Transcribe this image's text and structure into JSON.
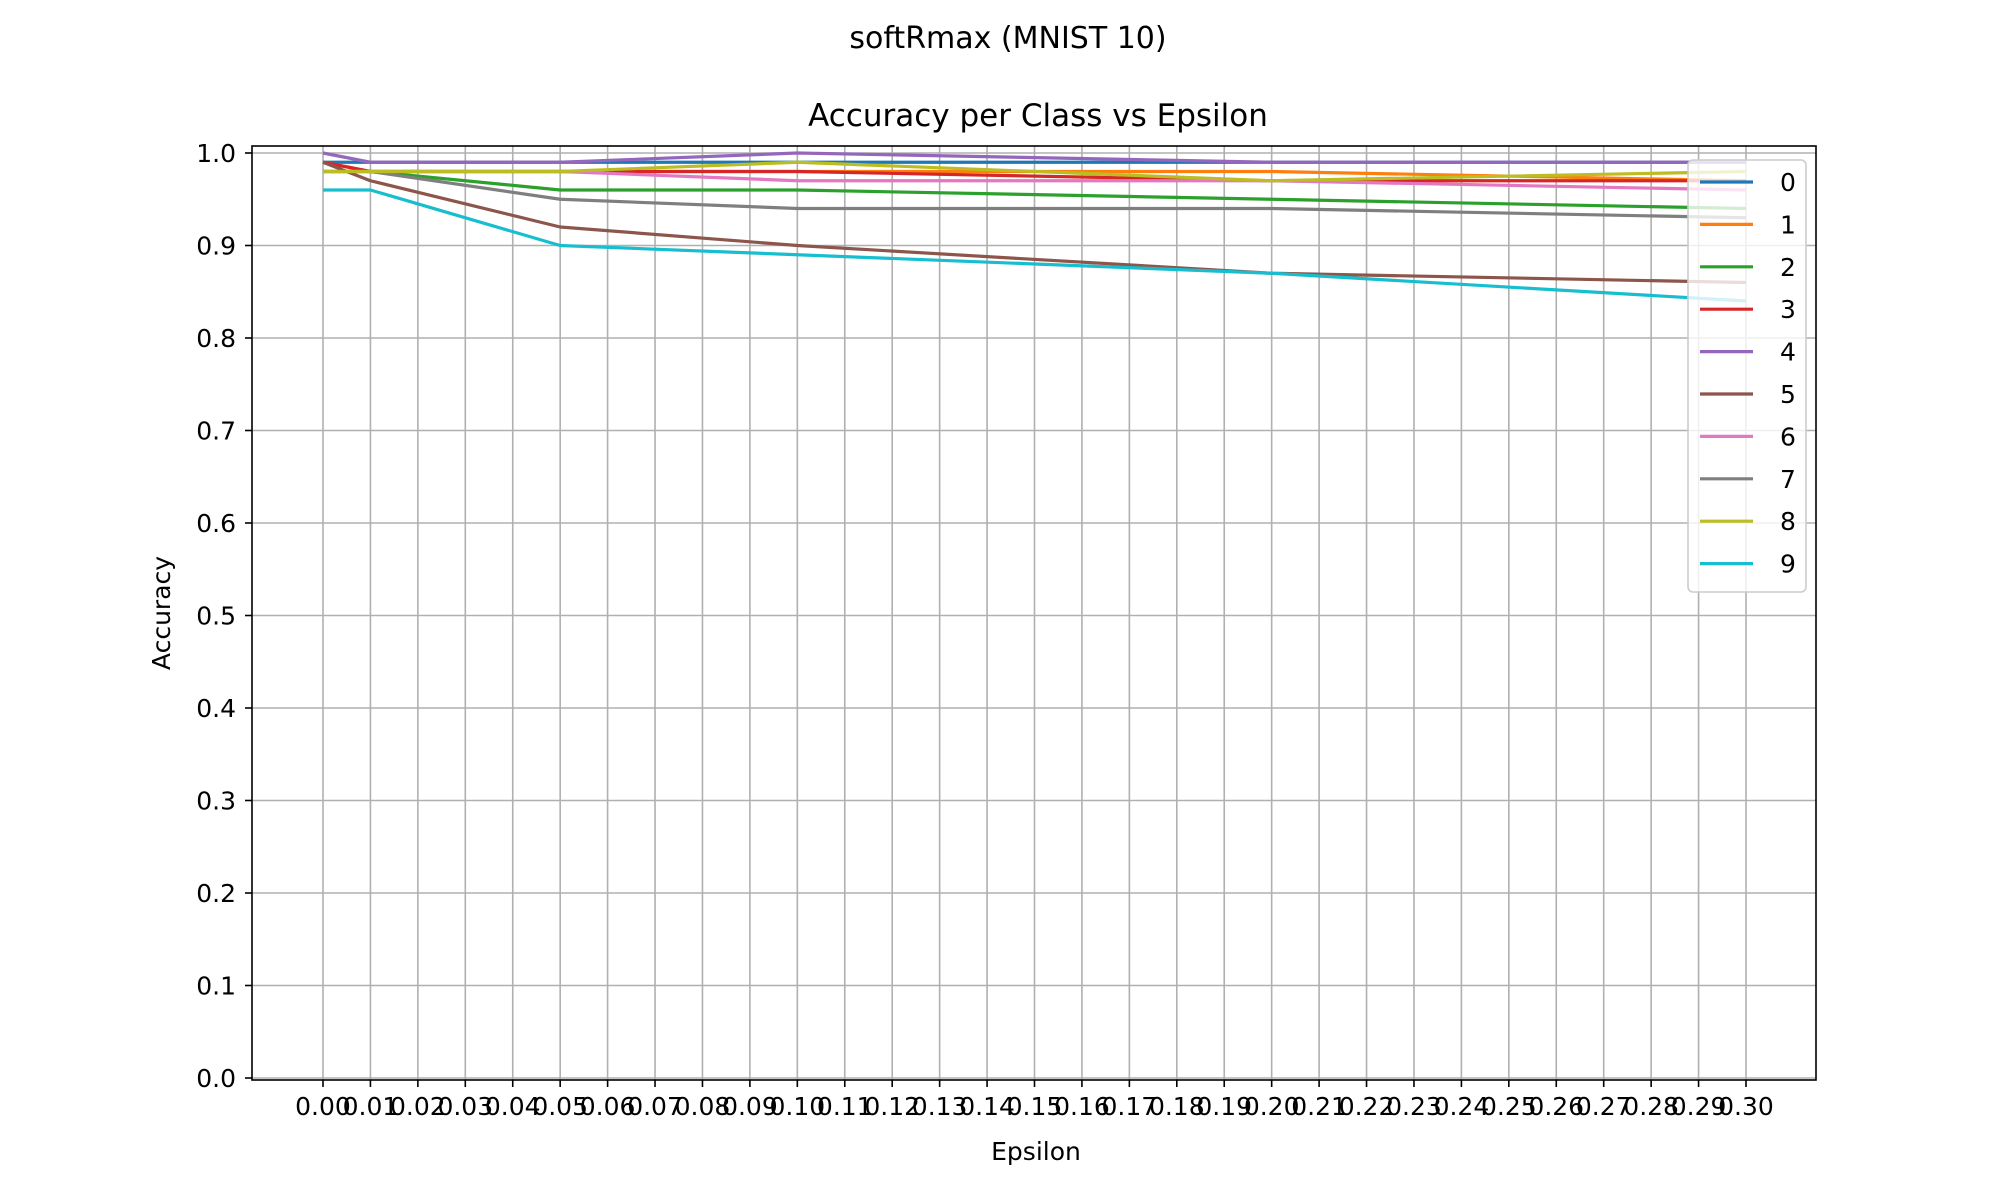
{
  "chart_data": {
    "type": "line",
    "suptitle": "softRmax (MNIST 10)",
    "title": "Accuracy per Class vs Epsilon",
    "xlabel": "Epsilon",
    "ylabel": "Accuracy",
    "ylim": [
      0.0,
      1.0
    ],
    "xlim": [
      0.0,
      0.3
    ],
    "grid": true,
    "legend_position": "upper right",
    "x_ticks": [
      "0.00",
      "0.01",
      "0.02",
      "0.03",
      "0.04",
      "0.05",
      "0.06",
      "0.07",
      "0.08",
      "0.09",
      "0.10",
      "0.11",
      "0.12",
      "0.13",
      "0.14",
      "0.15",
      "0.16",
      "0.17",
      "0.18",
      "0.19",
      "0.20",
      "0.21",
      "0.22",
      "0.23",
      "0.24",
      "0.25",
      "0.26",
      "0.27",
      "0.28",
      "0.29",
      "0.30"
    ],
    "y_ticks": [
      "0.0",
      "0.1",
      "0.2",
      "0.3",
      "0.4",
      "0.5",
      "0.6",
      "0.7",
      "0.8",
      "0.9",
      "1.0"
    ],
    "x": [
      0.0,
      0.01,
      0.05,
      0.1,
      0.2,
      0.3
    ],
    "series": [
      {
        "name": "0",
        "color": "#1f77b4",
        "values": [
          0.99,
          0.99,
          0.99,
          0.99,
          0.99,
          0.99
        ]
      },
      {
        "name": "1",
        "color": "#ff7f0e",
        "values": [
          0.99,
          0.98,
          0.98,
          0.98,
          0.98,
          0.97
        ]
      },
      {
        "name": "2",
        "color": "#2ca02c",
        "values": [
          0.98,
          0.98,
          0.96,
          0.96,
          0.95,
          0.94
        ]
      },
      {
        "name": "3",
        "color": "#d62728",
        "values": [
          0.99,
          0.98,
          0.98,
          0.98,
          0.97,
          0.97
        ]
      },
      {
        "name": "4",
        "color": "#9467bd",
        "values": [
          1.0,
          0.99,
          0.99,
          1.0,
          0.99,
          0.99
        ]
      },
      {
        "name": "5",
        "color": "#8c564b",
        "values": [
          0.99,
          0.97,
          0.92,
          0.9,
          0.87,
          0.86
        ]
      },
      {
        "name": "6",
        "color": "#e377c2",
        "values": [
          0.98,
          0.98,
          0.98,
          0.97,
          0.97,
          0.96
        ]
      },
      {
        "name": "7",
        "color": "#7f7f7f",
        "values": [
          0.98,
          0.98,
          0.95,
          0.94,
          0.94,
          0.93
        ]
      },
      {
        "name": "8",
        "color": "#bcbd22",
        "values": [
          0.98,
          0.98,
          0.98,
          0.99,
          0.97,
          0.98
        ]
      },
      {
        "name": "9",
        "color": "#17becf",
        "values": [
          0.96,
          0.96,
          0.9,
          0.89,
          0.87,
          0.84
        ]
      }
    ]
  }
}
